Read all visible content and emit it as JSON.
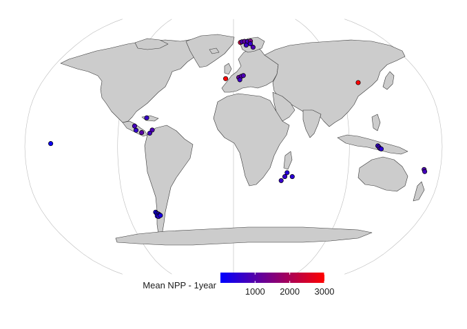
{
  "legend": {
    "title": "Mean NPP - 1year",
    "ticks": [
      1000,
      2000,
      3000
    ],
    "range": [
      0,
      3000
    ],
    "colors": [
      "#0000ff",
      "#ff0000"
    ]
  },
  "map": {
    "projection": "Robinson",
    "land_color": "#cccccc",
    "border_color": "#333333",
    "graticule_color": "#bbbbbb",
    "point_outline": "#000000"
  },
  "points": [
    {
      "lon": -157.8,
      "lat": 1.9,
      "npp": 150
    },
    {
      "lon": -84.5,
      "lat": 10.3,
      "npp": 600
    },
    {
      "lon": -86.0,
      "lat": 13.0,
      "npp": 800
    },
    {
      "lon": -79.5,
      "lat": 8.9,
      "npp": 1050
    },
    {
      "lon": -76.0,
      "lat": 18.2,
      "npp": 650
    },
    {
      "lon": -70.5,
      "lat": 10.5,
      "npp": 900
    },
    {
      "lon": -72.5,
      "lat": 8.5,
      "npp": 750
    },
    {
      "lon": -73.5,
      "lat": -41.5,
      "npp": 300
    },
    {
      "lon": -72.8,
      "lat": -42.3,
      "npp": 200
    },
    {
      "lon": -72.0,
      "lat": -43.0,
      "npp": 250
    },
    {
      "lon": -71.5,
      "lat": -42.6,
      "npp": 350
    },
    {
      "lon": -70.5,
      "lat": -43.2,
      "npp": 400
    },
    {
      "lon": -73.0,
      "lat": -44.0,
      "npp": 150
    },
    {
      "lon": -71.8,
      "lat": -44.3,
      "npp": 500
    },
    {
      "lon": -69.8,
      "lat": -43.6,
      "npp": 300
    },
    {
      "lon": -7.5,
      "lat": 43.0,
      "npp": 3000
    },
    {
      "lon": 5.0,
      "lat": 43.8,
      "npp": 1150
    },
    {
      "lon": 7.5,
      "lat": 44.5,
      "npp": 1000
    },
    {
      "lon": 9.5,
      "lat": 45.0,
      "npp": 900
    },
    {
      "lon": 6.0,
      "lat": 42.3,
      "npp": 700
    },
    {
      "lon": 8.0,
      "lat": 67.5,
      "npp": 2300
    },
    {
      "lon": 10.0,
      "lat": 68.0,
      "npp": 900
    },
    {
      "lon": 13.0,
      "lat": 68.3,
      "npp": 1100
    },
    {
      "lon": 16.5,
      "lat": 68.2,
      "npp": 800
    },
    {
      "lon": 20.0,
      "lat": 68.5,
      "npp": 1400
    },
    {
      "lon": 14.5,
      "lat": 65.5,
      "npp": 700
    },
    {
      "lon": 22.0,
      "lat": 64.0,
      "npp": 900
    },
    {
      "lon": 19.5,
      "lat": 66.5,
      "npp": 650
    },
    {
      "lon": 46.8,
      "lat": -16.5,
      "npp": 450
    },
    {
      "lon": 45.0,
      "lat": -19.0,
      "npp": 600
    },
    {
      "lon": 51.5,
      "lat": -19.0,
      "npp": 500
    },
    {
      "lon": 42.0,
      "lat": -21.5,
      "npp": 650
    },
    {
      "lon": 117.0,
      "lat": 40.5,
      "npp": 3000
    },
    {
      "lon": 124.5,
      "lat": 0.5,
      "npp": 600
    },
    {
      "lon": 125.5,
      "lat": -0.3,
      "npp": 700
    },
    {
      "lon": 126.5,
      "lat": -1.2,
      "npp": 800
    },
    {
      "lon": 127.5,
      "lat": -1.5,
      "npp": 500
    },
    {
      "lon": 166.0,
      "lat": -14.5,
      "npp": 900
    },
    {
      "lon": 166.8,
      "lat": -15.8,
      "npp": 800
    }
  ]
}
